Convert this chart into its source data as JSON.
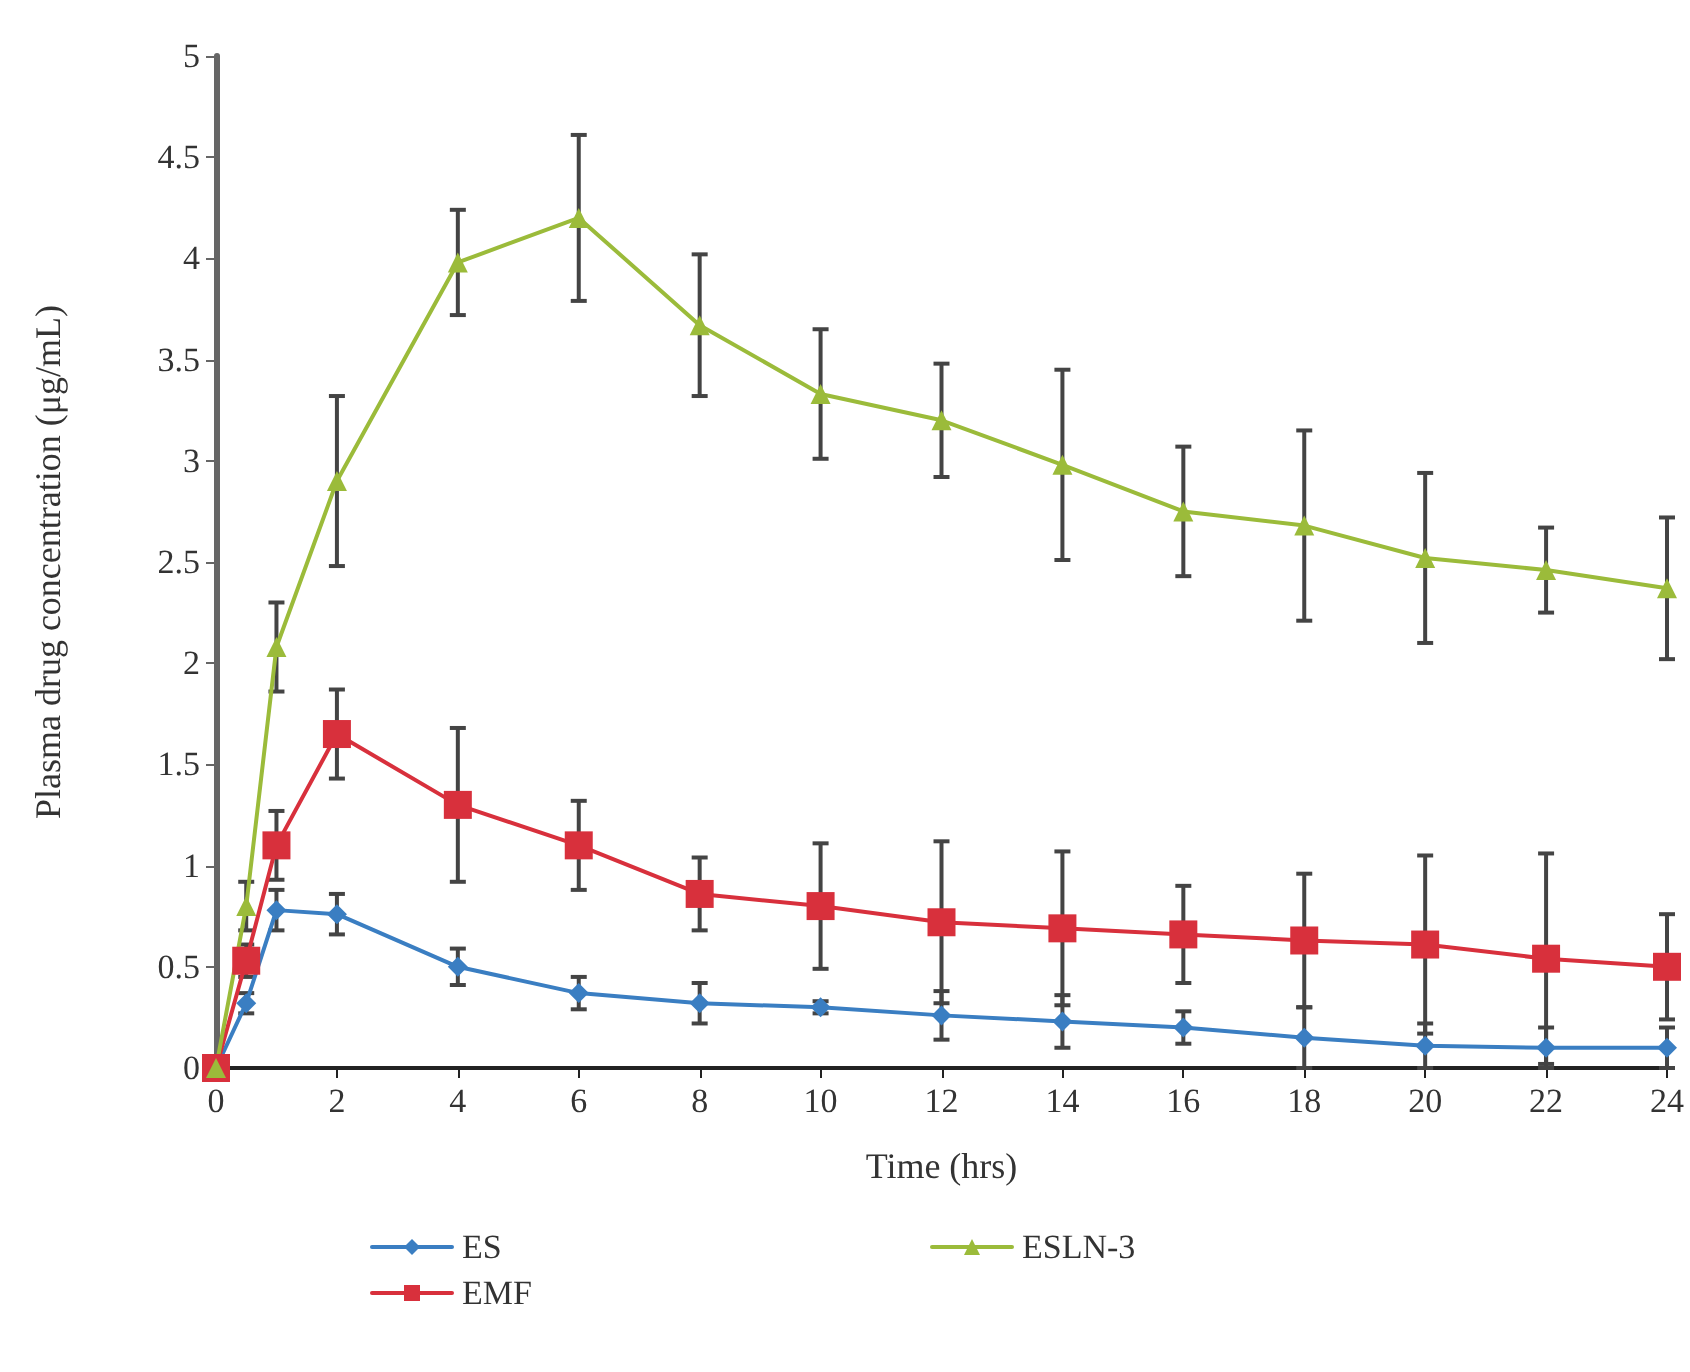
{
  "chart_data": {
    "type": "line",
    "xlabel": "Time (hrs)",
    "ylabel": "Plasma drug concentration (μg/mL)",
    "x": [
      0,
      0.5,
      1,
      2,
      4,
      6,
      8,
      10,
      12,
      14,
      16,
      18,
      20,
      22,
      24
    ],
    "xlim": [
      0,
      24
    ],
    "xticks": [
      0,
      2,
      4,
      6,
      8,
      10,
      12,
      14,
      16,
      18,
      20,
      22,
      24
    ],
    "ylim": [
      0,
      5
    ],
    "yticks": [
      0,
      0.5,
      1,
      1.5,
      2,
      2.5,
      3,
      3.5,
      4,
      4.5,
      5
    ],
    "grid": false,
    "legend": "bottom left",
    "line_style": "solid",
    "series": [
      {
        "name": "ES",
        "color": "#3a7ec2",
        "marker": "diamond",
        "values": [
          0,
          0.32,
          0.78,
          0.76,
          0.5,
          0.37,
          0.32,
          0.3,
          0.26,
          0.23,
          0.2,
          0.15,
          0.11,
          0.1,
          0.1
        ],
        "errors": [
          null,
          0.05,
          0.1,
          0.1,
          0.09,
          0.08,
          0.1,
          0.03,
          0.12,
          0.13,
          0.08,
          0.15,
          0.11,
          0.1,
          0.1
        ]
      },
      {
        "name": "EMF",
        "color": "#d8303c",
        "marker": "square",
        "values": [
          0,
          0.53,
          1.1,
          1.65,
          1.3,
          1.1,
          0.86,
          0.8,
          0.72,
          0.69,
          0.66,
          0.63,
          0.61,
          0.54,
          0.5
        ],
        "errors": [
          null,
          0.08,
          0.17,
          0.22,
          0.38,
          0.22,
          0.18,
          0.31,
          0.4,
          0.38,
          0.24,
          0.33,
          0.44,
          0.52,
          0.26
        ]
      },
      {
        "name": "ESLN-3",
        "color": "#9bbb3a",
        "marker": "triangle",
        "values": [
          0,
          0.8,
          2.08,
          2.9,
          3.98,
          4.2,
          3.67,
          3.33,
          3.2,
          2.98,
          2.75,
          2.68,
          2.52,
          2.46,
          2.37
        ],
        "errors": [
          null,
          0.12,
          0.22,
          0.42,
          0.26,
          0.41,
          0.35,
          0.32,
          0.28,
          0.47,
          0.32,
          0.47,
          0.42,
          0.21,
          0.35
        ]
      }
    ]
  }
}
